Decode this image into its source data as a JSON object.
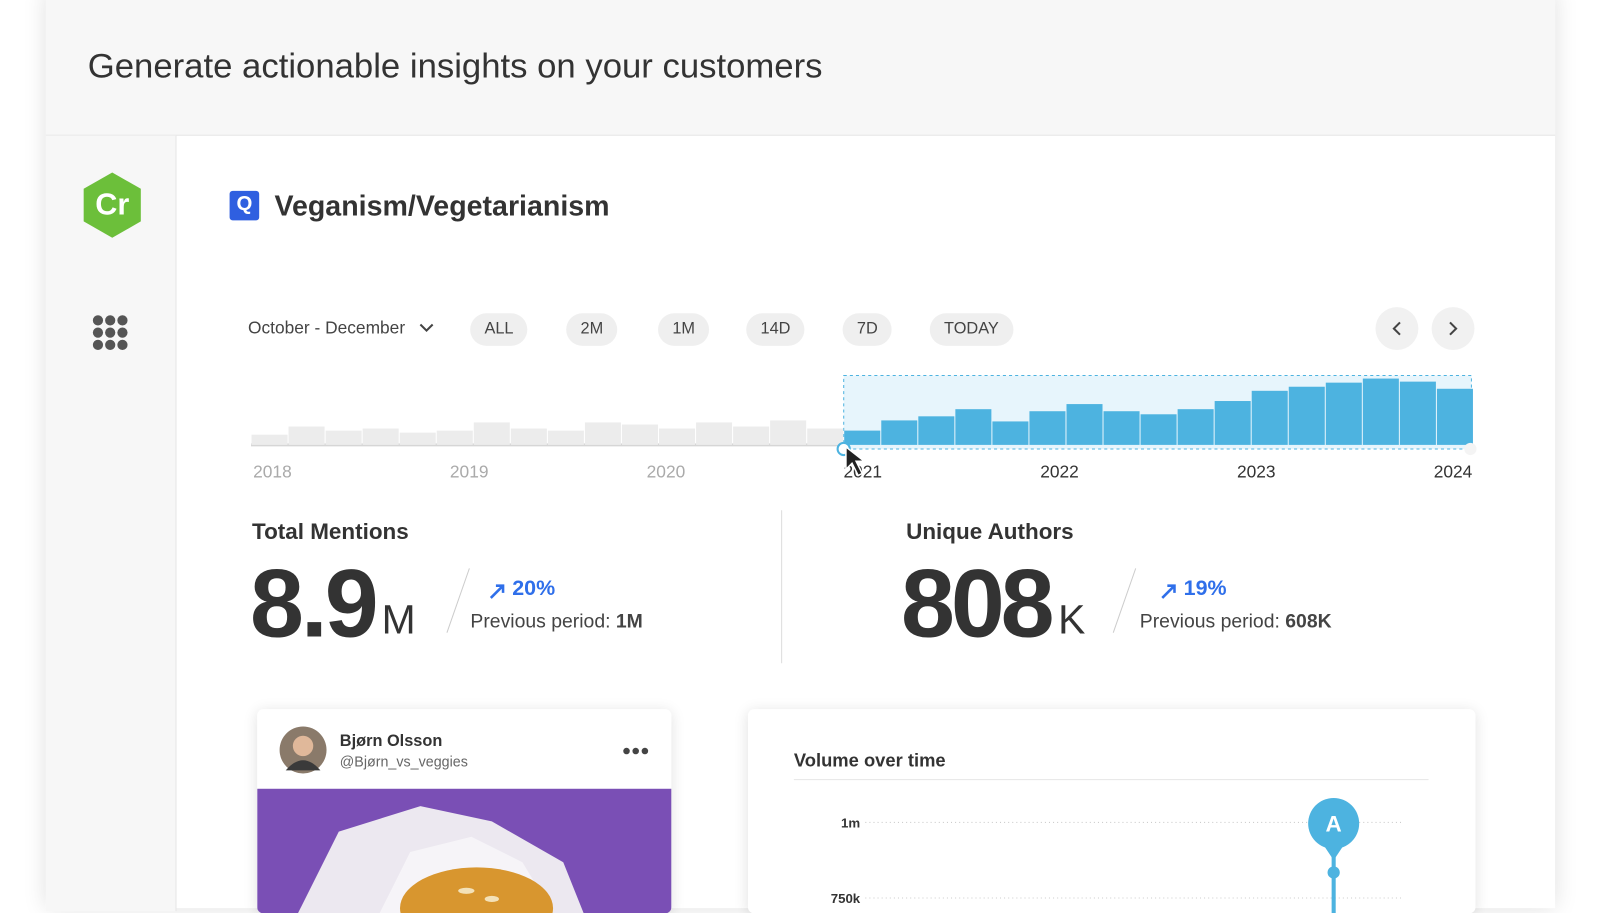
{
  "header": {
    "title": "Generate actionable insights on your customers"
  },
  "sidebar": {
    "logo": "Cr"
  },
  "query": {
    "icon": "Q",
    "title": "Veganism/Vegetarianism"
  },
  "date_range": "October - December",
  "range_buttons": [
    "ALL",
    "2M",
    "1M",
    "14D",
    "7D",
    "TODAY"
  ],
  "chart_data": [
    {
      "type": "bar",
      "values": [
        10,
        18,
        14,
        16,
        12,
        14,
        22,
        16,
        14,
        22,
        20,
        16,
        22,
        18,
        24,
        16,
        14,
        24,
        28,
        35,
        23,
        33,
        40,
        33,
        30,
        35,
        43,
        53,
        57,
        61,
        65,
        62,
        55
      ],
      "colors": [
        "#ececec",
        "#ececec",
        "#ececec",
        "#ececec",
        "#ececec",
        "#ececec",
        "#ececec",
        "#ececec",
        "#ececec",
        "#ececec",
        "#ececec",
        "#ececec",
        "#ececec",
        "#ececec",
        "#ececec",
        "#ececec",
        "#4db3e0",
        "#4db3e0",
        "#4db3e0",
        "#4db3e0",
        "#4db3e0",
        "#4db3e0",
        "#4db3e0",
        "#4db3e0",
        "#4db3e0",
        "#4db3e0",
        "#4db3e0",
        "#4db3e0",
        "#4db3e0",
        "#4db3e0",
        "#4db3e0",
        "#4db3e0",
        "#4db3e0"
      ],
      "xlim": [
        2018,
        2024
      ],
      "xticks": [
        2018,
        2019,
        2020,
        2021,
        2022,
        2023,
        2024
      ]
    },
    {
      "type": "line",
      "title": "Volume over time",
      "yticks": [
        {
          "value": 1000000,
          "label": "1m"
        },
        {
          "value": 750000,
          "label": "750k"
        }
      ],
      "grid": true,
      "annotations": [
        "A"
      ]
    }
  ],
  "stats": [
    {
      "label": "Total Mentions",
      "value": "8.9",
      "unit": "M",
      "change": "20%",
      "previous_label": "Previous period:",
      "previous_value": "1M"
    },
    {
      "label": "Unique Authors",
      "value": "808",
      "unit": "K",
      "change": "19%",
      "previous_label": "Previous period:",
      "previous_value": "608K"
    }
  ],
  "post": {
    "author": "Bjørn Olsson",
    "handle": "@Bjørn_vs_veggies"
  }
}
